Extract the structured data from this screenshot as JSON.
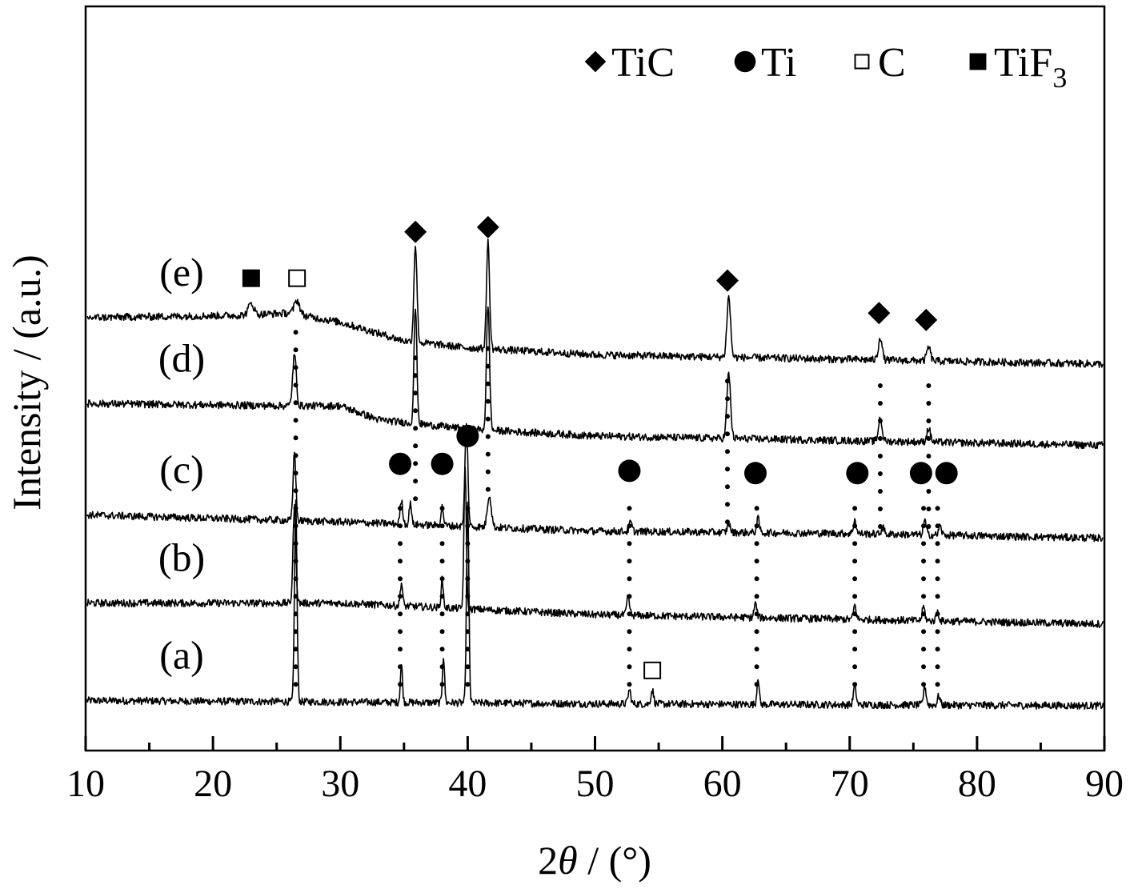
{
  "chart_data": {
    "type": "line",
    "title": "",
    "xlabel_prefix": "2",
    "xlabel_symbol": "θ",
    "xlabel_suffix": " / (°)",
    "ylabel": "Intensity / (a.u.)",
    "xlim": [
      10,
      90
    ],
    "xticks": [
      10,
      20,
      30,
      40,
      50,
      60,
      70,
      80,
      90
    ],
    "y_tick_labels": false,
    "grid": false,
    "legend_position": "top-right",
    "legend": [
      {
        "marker": "diamond",
        "label": "TiC",
        "subscript": ""
      },
      {
        "marker": "circle",
        "label": "Ti",
        "subscript": ""
      },
      {
        "marker": "open-square",
        "label": "C",
        "subscript": ""
      },
      {
        "marker": "filled-square",
        "label": "TiF",
        "subscript": "3"
      }
    ],
    "series": [
      {
        "label": "(a)",
        "baseline": [
          [
            10,
            0.25
          ],
          [
            30,
            0.22
          ],
          [
            50,
            0.18
          ],
          [
            70,
            0.16
          ],
          [
            90,
            0.14
          ]
        ],
        "peaks": [
          {
            "x": 26.5,
            "h": 4.3,
            "w": 0.14
          },
          {
            "x": 34.8,
            "h": 0.8,
            "w": 0.12
          },
          {
            "x": 38.1,
            "h": 1.0,
            "w": 0.12
          },
          {
            "x": 40.0,
            "h": 4.3,
            "w": 0.13
          },
          {
            "x": 52.7,
            "h": 0.3,
            "w": 0.15
          },
          {
            "x": 54.5,
            "h": 0.3,
            "w": 0.15
          },
          {
            "x": 62.8,
            "h": 0.6,
            "w": 0.12
          },
          {
            "x": 70.4,
            "h": 0.4,
            "w": 0.15
          },
          {
            "x": 75.9,
            "h": 0.4,
            "w": 0.15
          },
          {
            "x": 77.0,
            "h": 0.2,
            "w": 0.15
          }
        ]
      },
      {
        "label": "(b)",
        "baseline": [
          [
            10,
            2.35
          ],
          [
            30,
            2.35
          ],
          [
            50,
            2.1
          ],
          [
            70,
            2.0
          ],
          [
            90,
            1.9
          ]
        ],
        "peaks": [
          {
            "x": 26.4,
            "h": 2.1,
            "w": 0.16
          },
          {
            "x": 34.8,
            "h": 0.5,
            "w": 0.13
          },
          {
            "x": 38.0,
            "h": 0.6,
            "w": 0.13
          },
          {
            "x": 39.8,
            "h": 3.0,
            "w": 0.13
          },
          {
            "x": 52.6,
            "h": 0.4,
            "w": 0.15
          },
          {
            "x": 62.6,
            "h": 0.3,
            "w": 0.15
          },
          {
            "x": 70.4,
            "h": 0.3,
            "w": 0.15
          },
          {
            "x": 75.8,
            "h": 0.3,
            "w": 0.15
          },
          {
            "x": 76.9,
            "h": 0.2,
            "w": 0.15
          }
        ]
      },
      {
        "label": "(c)",
        "baseline": [
          [
            10,
            4.25
          ],
          [
            30,
            4.1
          ],
          [
            50,
            3.9
          ],
          [
            70,
            3.85
          ],
          [
            90,
            3.75
          ]
        ],
        "peaks": [
          {
            "x": 26.4,
            "h": 1.5,
            "w": 0.15
          },
          {
            "x": 34.8,
            "h": 0.5,
            "w": 0.15
          },
          {
            "x": 35.5,
            "h": 0.5,
            "w": 0.12
          },
          {
            "x": 38.0,
            "h": 0.4,
            "w": 0.15
          },
          {
            "x": 39.9,
            "h": 2.2,
            "w": 0.16
          },
          {
            "x": 41.7,
            "h": 0.7,
            "w": 0.22
          },
          {
            "x": 52.8,
            "h": 0.2,
            "w": 0.15
          },
          {
            "x": 60.5,
            "h": 0.2,
            "w": 0.15
          },
          {
            "x": 62.8,
            "h": 0.3,
            "w": 0.15
          },
          {
            "x": 70.4,
            "h": 0.3,
            "w": 0.15
          },
          {
            "x": 72.6,
            "h": 0.15,
            "w": 0.15
          },
          {
            "x": 75.9,
            "h": 0.3,
            "w": 0.15
          },
          {
            "x": 77.1,
            "h": 0.2,
            "w": 0.15
          }
        ]
      },
      {
        "label": "(d)",
        "baseline": [
          [
            10,
            6.65
          ],
          [
            26,
            6.6
          ],
          [
            30,
            6.6
          ],
          [
            33,
            6.3
          ],
          [
            40,
            6.1
          ],
          [
            50,
            5.95
          ],
          [
            70,
            5.85
          ],
          [
            90,
            5.75
          ]
        ],
        "peaks": [
          {
            "x": 26.4,
            "h": 1.1,
            "w": 0.2
          },
          {
            "x": 35.9,
            "h": 2.5,
            "w": 0.16
          },
          {
            "x": 41.6,
            "h": 2.7,
            "w": 0.17
          },
          {
            "x": 60.5,
            "h": 1.4,
            "w": 0.2
          },
          {
            "x": 72.4,
            "h": 0.5,
            "w": 0.2
          },
          {
            "x": 76.2,
            "h": 0.3,
            "w": 0.2
          }
        ]
      },
      {
        "label": "(e)",
        "baseline": [
          [
            10,
            8.5
          ],
          [
            22,
            8.55
          ],
          [
            26,
            8.6
          ],
          [
            30,
            8.4
          ],
          [
            35,
            8.0
          ],
          [
            40,
            7.85
          ],
          [
            50,
            7.7
          ],
          [
            70,
            7.6
          ],
          [
            90,
            7.5
          ]
        ],
        "peaks": [
          {
            "x": 23.0,
            "h": 0.25,
            "w": 0.3
          },
          {
            "x": 26.6,
            "h": 0.3,
            "w": 0.3
          },
          {
            "x": 35.9,
            "h": 2.1,
            "w": 0.17
          },
          {
            "x": 41.6,
            "h": 2.3,
            "w": 0.17
          },
          {
            "x": 60.5,
            "h": 1.3,
            "w": 0.2
          },
          {
            "x": 72.4,
            "h": 0.5,
            "w": 0.2
          },
          {
            "x": 76.2,
            "h": 0.3,
            "w": 0.2
          }
        ]
      }
    ],
    "peak_markers": [
      {
        "type": "filled-square",
        "x": 23.0,
        "y": 9.35
      },
      {
        "type": "open-square",
        "x": 26.6,
        "y": 9.35
      },
      {
        "type": "diamond",
        "x": 35.9,
        "y": 10.35
      },
      {
        "type": "diamond",
        "x": 41.6,
        "y": 10.45
      },
      {
        "type": "diamond",
        "x": 60.4,
        "y": 9.3
      },
      {
        "type": "diamond",
        "x": 72.3,
        "y": 8.6
      },
      {
        "type": "diamond",
        "x": 76.0,
        "y": 8.45
      },
      {
        "type": "circle",
        "x": 34.7,
        "y": 5.35
      },
      {
        "type": "circle",
        "x": 38.0,
        "y": 5.35
      },
      {
        "type": "circle",
        "x": 40.0,
        "y": 5.95
      },
      {
        "type": "circle",
        "x": 52.7,
        "y": 5.2
      },
      {
        "type": "circle",
        "x": 62.6,
        "y": 5.15
      },
      {
        "type": "circle",
        "x": 70.6,
        "y": 5.15
      },
      {
        "type": "circle",
        "x": 75.6,
        "y": 5.15
      },
      {
        "type": "circle",
        "x": 77.6,
        "y": 5.15
      },
      {
        "type": "open-square",
        "x": 54.5,
        "y": 0.9
      }
    ],
    "guide_lines": [
      {
        "x": 26.5,
        "y1": 0.6,
        "y2": 8.4
      },
      {
        "x": 35.9,
        "y1": 4.6,
        "y2": 7.9
      },
      {
        "x": 41.6,
        "y1": 4.8,
        "y2": 7.9
      },
      {
        "x": 60.4,
        "y1": 4.1,
        "y2": 7.4
      },
      {
        "x": 72.4,
        "y1": 4.0,
        "y2": 7.4
      },
      {
        "x": 76.2,
        "y1": 4.0,
        "y2": 7.4
      },
      {
        "x": 34.7,
        "y1": 0.6,
        "y2": 4.6
      },
      {
        "x": 38.0,
        "y1": 0.6,
        "y2": 4.6
      },
      {
        "x": 40.0,
        "y1": 0.6,
        "y2": 4.6
      },
      {
        "x": 52.7,
        "y1": 0.6,
        "y2": 4.6
      },
      {
        "x": 62.7,
        "y1": 0.6,
        "y2": 4.6
      },
      {
        "x": 70.4,
        "y1": 0.6,
        "y2": 4.6
      },
      {
        "x": 75.8,
        "y1": 0.6,
        "y2": 4.6
      },
      {
        "x": 76.9,
        "y1": 0.6,
        "y2": 4.6
      }
    ]
  }
}
